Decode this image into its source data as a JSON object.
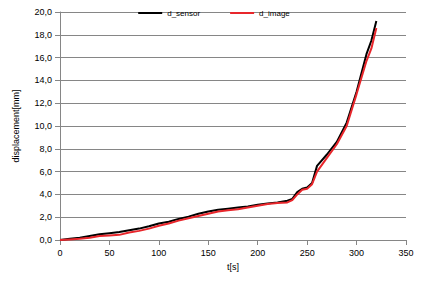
{
  "chart_data": {
    "type": "line",
    "x_label": "t[s]",
    "y_label": "displacement[mm]",
    "x": [
      0,
      10,
      20,
      30,
      40,
      50,
      60,
      70,
      80,
      90,
      100,
      110,
      120,
      130,
      140,
      150,
      160,
      170,
      180,
      190,
      200,
      210,
      220,
      230,
      235,
      240,
      245,
      250,
      255,
      260,
      270,
      280,
      290,
      300,
      310,
      315,
      320
    ],
    "series": [
      {
        "name": "d_sensor",
        "color": "#000000",
        "values": [
          0,
          0.1,
          0.2,
          0.35,
          0.5,
          0.6,
          0.7,
          0.85,
          1.0,
          1.2,
          1.45,
          1.6,
          1.85,
          2.05,
          2.3,
          2.5,
          2.65,
          2.75,
          2.85,
          2.95,
          3.1,
          3.2,
          3.3,
          3.45,
          3.6,
          4.2,
          4.5,
          4.6,
          5.0,
          6.5,
          7.5,
          8.6,
          10.3,
          13.0,
          16.3,
          17.5,
          19.2
        ]
      },
      {
        "name": "d_image",
        "color": "#e8262b",
        "values": [
          0,
          0.05,
          0.1,
          0.2,
          0.35,
          0.4,
          0.45,
          0.65,
          0.8,
          1.0,
          1.25,
          1.45,
          1.7,
          1.9,
          2.1,
          2.3,
          2.5,
          2.6,
          2.7,
          2.85,
          3.0,
          3.15,
          3.25,
          3.3,
          3.5,
          4.0,
          4.4,
          4.5,
          4.9,
          6.0,
          7.2,
          8.4,
          10.0,
          12.8,
          15.7,
          16.8,
          18.6
        ]
      }
    ],
    "xlim": [
      0,
      350
    ],
    "xticks": [
      0,
      50,
      100,
      150,
      200,
      250,
      300,
      350
    ],
    "ylim": [
      0,
      20
    ],
    "yticks": [
      {
        "value": 0,
        "label": "0,0"
      },
      {
        "value": 2,
        "label": "2,0"
      },
      {
        "value": 4,
        "label": "4,0"
      },
      {
        "value": 6,
        "label": "6,0"
      },
      {
        "value": 8,
        "label": "8,0"
      },
      {
        "value": 10,
        "label": "10,0"
      },
      {
        "value": 12,
        "label": "12,0"
      },
      {
        "value": 14,
        "label": "14,0"
      },
      {
        "value": 16,
        "label": "16,0"
      },
      {
        "value": 18,
        "label": "18,0"
      },
      {
        "value": 20,
        "label": "20,0"
      }
    ],
    "grid": true,
    "legend": "top"
  }
}
